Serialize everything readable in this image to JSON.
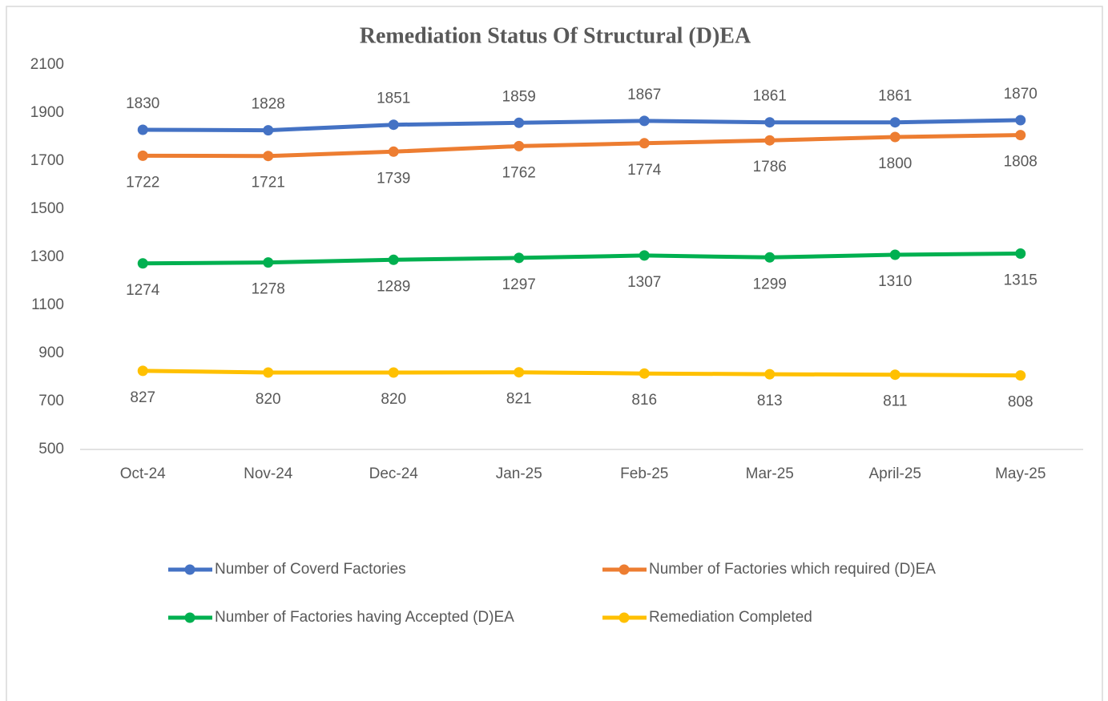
{
  "chart_data": {
    "type": "line",
    "title": "Remediation Status Of Structural (D)EA",
    "categories": [
      "Oct-24",
      "Nov-24",
      "Dec-24",
      "Jan-25",
      "Feb-25",
      "Mar-25",
      "April-25",
      "May-25"
    ],
    "series": [
      {
        "name": "Number of Coverd Factories",
        "color": "#4472c4",
        "values": [
          1830,
          1828,
          1851,
          1859,
          1867,
          1861,
          1861,
          1870
        ]
      },
      {
        "name": "Number of Factories which required (D)EA",
        "color": "#ed7d31",
        "values": [
          1722,
          1721,
          1739,
          1762,
          1774,
          1786,
          1800,
          1808
        ]
      },
      {
        "name": "Number of Factories having Accepted (D)EA",
        "color": "#00b050",
        "values": [
          1274,
          1278,
          1289,
          1297,
          1307,
          1299,
          1310,
          1315
        ]
      },
      {
        "name": "Remediation Completed",
        "color": "#ffc000",
        "values": [
          827,
          820,
          820,
          821,
          816,
          813,
          811,
          808
        ]
      }
    ],
    "ylim": [
      500,
      2100
    ],
    "yticks": [
      500,
      700,
      900,
      1100,
      1300,
      1500,
      1700,
      1900,
      2100
    ],
    "grid": false,
    "legend": "bottom"
  }
}
